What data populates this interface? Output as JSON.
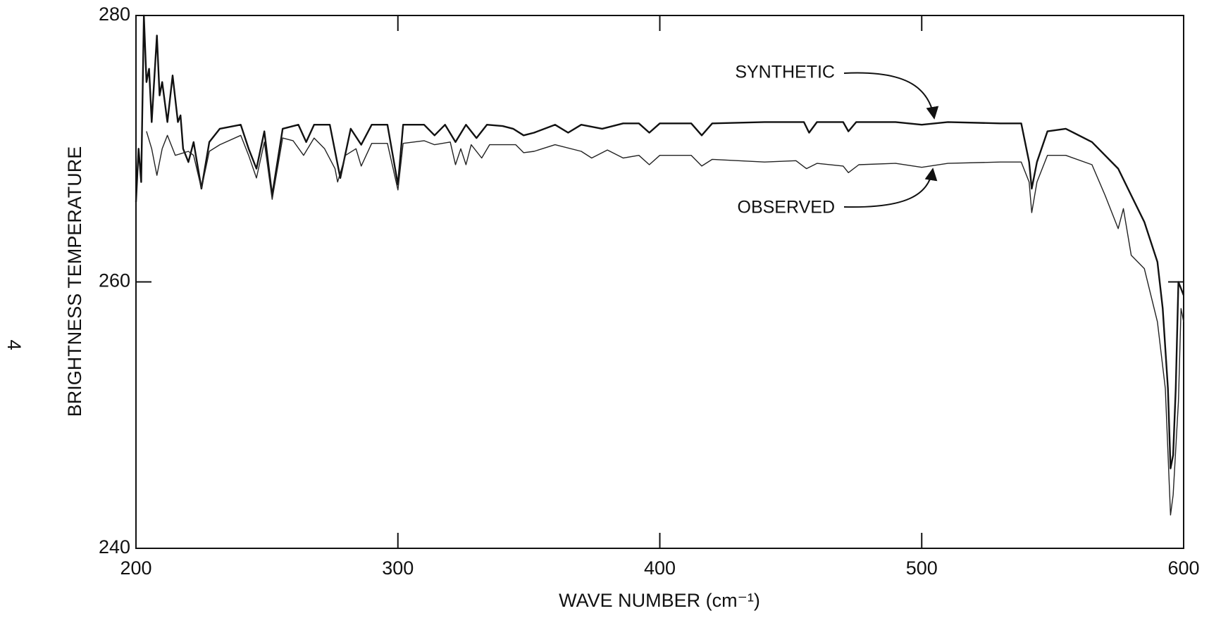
{
  "page_number": "4",
  "chart_data": {
    "type": "line",
    "xlabel": "WAVE NUMBER (cm⁻¹)",
    "ylabel": "BRIGHTNESS TEMPERATURE",
    "xlim": [
      200,
      600
    ],
    "ylim": [
      240,
      280
    ],
    "xticks": [
      200,
      300,
      400,
      500,
      600
    ],
    "yticks": [
      240,
      260,
      280
    ],
    "grid": false,
    "series": [
      {
        "name": "SYNTHETIC",
        "color": "#111111",
        "width": 2.4,
        "x": [
          200,
          201,
          202,
          203,
          204,
          205,
          206,
          208,
          209,
          210,
          212,
          214,
          216,
          217,
          218,
          220,
          222,
          225,
          228,
          232,
          240,
          243,
          246,
          249,
          252,
          256,
          262,
          265,
          268,
          274,
          278,
          282,
          286,
          290,
          296,
          300,
          302,
          310,
          314,
          318,
          322,
          326,
          330,
          334,
          340,
          344,
          348,
          352,
          360,
          365,
          370,
          378,
          386,
          392,
          396,
          400,
          412,
          416,
          420,
          440,
          455,
          457,
          460,
          470,
          472,
          475,
          490,
          500,
          510,
          530,
          538,
          541,
          542,
          544,
          548,
          555,
          565,
          575,
          580,
          585,
          590,
          592,
          594,
          595,
          596,
          597,
          598,
          600
        ],
        "values": [
          266,
          270,
          267.5,
          280,
          275,
          276,
          272,
          278.5,
          274,
          275,
          272,
          275.5,
          272,
          272.5,
          270,
          269,
          270.5,
          267,
          270.5,
          271.5,
          271.8,
          270,
          268.5,
          271.3,
          266.5,
          271.5,
          271.8,
          270.5,
          271.8,
          271.8,
          267.8,
          271.5,
          270.3,
          271.8,
          271.8,
          267.3,
          271.8,
          271.8,
          271,
          271.8,
          270.5,
          271.8,
          270.8,
          271.8,
          271.7,
          271.5,
          271,
          271.2,
          271.8,
          271.2,
          271.8,
          271.5,
          271.9,
          271.9,
          271.2,
          271.9,
          271.9,
          271,
          271.9,
          272,
          272,
          271.2,
          272,
          272,
          271.3,
          272,
          272,
          271.8,
          272,
          271.9,
          271.9,
          269,
          267,
          269,
          271.3,
          271.5,
          270.5,
          268.5,
          266.5,
          264.5,
          261.5,
          258,
          252,
          246,
          247,
          252,
          260,
          259
        ]
      },
      {
        "name": "OBSERVED",
        "color": "#222222",
        "width": 1.4,
        "x": [
          204,
          206,
          208,
          210,
          212,
          215,
          220,
          222,
          225,
          228,
          232,
          240,
          243,
          246,
          249,
          252,
          256,
          260,
          264,
          268,
          272,
          276,
          277,
          280,
          284,
          286,
          290,
          296,
          300,
          302,
          310,
          314,
          320,
          322,
          324,
          326,
          328,
          332,
          335,
          345,
          348,
          352,
          360,
          370,
          374,
          380,
          386,
          392,
          396,
          400,
          412,
          416,
          420,
          440,
          452,
          456,
          460,
          470,
          472,
          476,
          490,
          500,
          510,
          530,
          538,
          541,
          542,
          544,
          548,
          555,
          565,
          570,
          575,
          577,
          580,
          585,
          590,
          593,
          595,
          596,
          598,
          599,
          600
        ],
        "values": [
          271.3,
          270,
          268,
          270,
          271,
          269.5,
          269.8,
          269.5,
          267,
          269.8,
          270.3,
          271,
          269.5,
          267.8,
          270.5,
          266.2,
          270.8,
          270.6,
          269.5,
          270.8,
          270,
          268.5,
          267.5,
          269.5,
          270,
          268.7,
          270.4,
          270.4,
          266.9,
          270.4,
          270.6,
          270.3,
          270.5,
          268.8,
          270,
          268.8,
          270.3,
          269.3,
          270.3,
          270.3,
          269.7,
          269.8,
          270.3,
          269.8,
          269.3,
          269.9,
          269.3,
          269.5,
          268.8,
          269.5,
          269.5,
          268.7,
          269.2,
          269,
          269.1,
          268.5,
          268.9,
          268.7,
          268.2,
          268.8,
          268.9,
          268.6,
          268.9,
          269,
          269,
          267.5,
          265.2,
          267.5,
          269.5,
          269.5,
          268.8,
          266.5,
          264,
          265.5,
          262,
          261,
          257,
          252,
          242.5,
          244,
          251,
          258,
          257
        ]
      }
    ]
  }
}
